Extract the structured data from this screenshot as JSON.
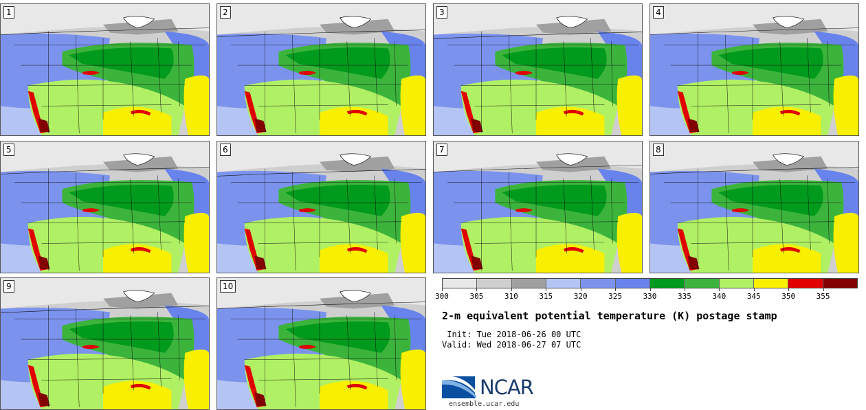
{
  "title": "2-m equivalent potential temperature (K) postage stamp",
  "init": " Init: Tue 2018-06-26 00 UTC",
  "valid": "Valid: Wed 2018-06-27 07 UTC",
  "logo_text": "NCAR",
  "site": "ensemble.ucar.edu",
  "panels": [
    "1",
    "2",
    "3",
    "4",
    "5",
    "6",
    "7",
    "8",
    "9",
    "10"
  ],
  "colorbar": {
    "ticks": [
      "300",
      "305",
      "310",
      "315",
      "320",
      "325",
      "330",
      "335",
      "340",
      "345",
      "350",
      "355"
    ],
    "colors": [
      "#e8e8e8",
      "#cfcfcf",
      "#a0a0a0",
      "#b4c4f4",
      "#7c93ee",
      "#6883ec",
      "#009a1c",
      "#3cb43c",
      "#b0f064",
      "#f8f000",
      "#e00000",
      "#820000"
    ]
  }
}
